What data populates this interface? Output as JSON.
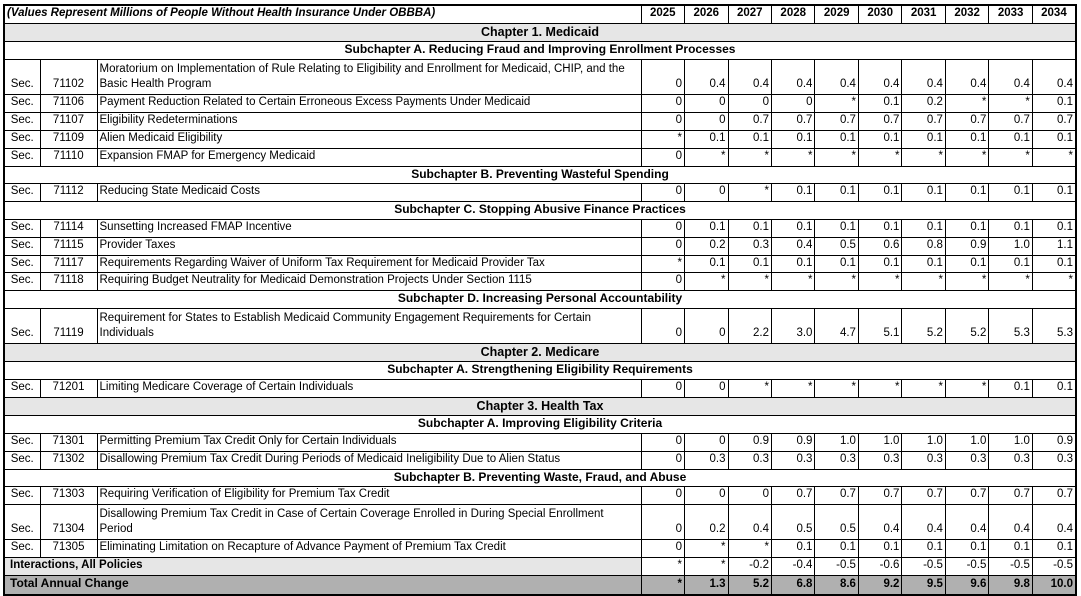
{
  "table": {
    "title": "(Values Represent Millions of People Without Health Insurance Under OBBBA)",
    "years": [
      "2025",
      "2026",
      "2027",
      "2028",
      "2029",
      "2030",
      "2031",
      "2032",
      "2033",
      "2034"
    ],
    "colors": {
      "band_light": "#e6e6e6",
      "band_dark": "#b0b0b0",
      "border": "#000000",
      "text": "#000000"
    },
    "rows": [
      {
        "type": "chapter",
        "label": "Chapter 1. Medicaid"
      },
      {
        "type": "subchapter",
        "label": "Subchapter A. Reducing Fraud and Improving Enrollment Processes"
      },
      {
        "type": "section",
        "sec": "Sec.",
        "number": "71102",
        "description": "Moratorium on Implementation of Rule Relating to Eligibility and Enrollment for Medicaid, CHIP, and the Basic Health Program",
        "twoLine": true,
        "values": [
          "0",
          "0.4",
          "0.4",
          "0.4",
          "0.4",
          "0.4",
          "0.4",
          "0.4",
          "0.4",
          "0.4"
        ]
      },
      {
        "type": "section",
        "sec": "Sec.",
        "number": "71106",
        "description": "Payment Reduction Related to Certain Erroneous Excess Payments Under Medicaid",
        "values": [
          "0",
          "0",
          "0",
          "0",
          "*",
          "0.1",
          "0.2",
          "*",
          "*",
          "0.1"
        ]
      },
      {
        "type": "section",
        "sec": "Sec.",
        "number": "71107",
        "description": "Eligibility Redeterminations",
        "values": [
          "0",
          "0",
          "0.7",
          "0.7",
          "0.7",
          "0.7",
          "0.7",
          "0.7",
          "0.7",
          "0.7"
        ]
      },
      {
        "type": "section",
        "sec": "Sec.",
        "number": "71109",
        "description": "Alien Medicaid Eligibility",
        "values": [
          "*",
          "0.1",
          "0.1",
          "0.1",
          "0.1",
          "0.1",
          "0.1",
          "0.1",
          "0.1",
          "0.1"
        ]
      },
      {
        "type": "section",
        "sec": "Sec.",
        "number": "71110",
        "description": "Expansion FMAP for Emergency Medicaid",
        "values": [
          "0",
          "*",
          "*",
          "*",
          "*",
          "*",
          "*",
          "*",
          "*",
          "*"
        ]
      },
      {
        "type": "subchapter",
        "label": "Subchapter B. Preventing Wasteful Spending"
      },
      {
        "type": "section",
        "sec": "Sec.",
        "number": "71112",
        "description": "Reducing State Medicaid Costs",
        "values": [
          "0",
          "0",
          "*",
          "0.1",
          "0.1",
          "0.1",
          "0.1",
          "0.1",
          "0.1",
          "0.1"
        ]
      },
      {
        "type": "subchapter",
        "label": "Subchapter C. Stopping Abusive Finance Practices"
      },
      {
        "type": "section",
        "sec": "Sec.",
        "number": "71114",
        "description": "Sunsetting Increased FMAP Incentive",
        "values": [
          "0",
          "0.1",
          "0.1",
          "0.1",
          "0.1",
          "0.1",
          "0.1",
          "0.1",
          "0.1",
          "0.1"
        ]
      },
      {
        "type": "section",
        "sec": "Sec.",
        "number": "71115",
        "description": "Provider Taxes",
        "values": [
          "0",
          "0.2",
          "0.3",
          "0.4",
          "0.5",
          "0.6",
          "0.8",
          "0.9",
          "1.0",
          "1.1"
        ]
      },
      {
        "type": "section",
        "sec": "Sec.",
        "number": "71117",
        "description": "Requirements Regarding Waiver of Uniform Tax Requirement for Medicaid Provider Tax",
        "values": [
          "*",
          "0.1",
          "0.1",
          "0.1",
          "0.1",
          "0.1",
          "0.1",
          "0.1",
          "0.1",
          "0.1"
        ]
      },
      {
        "type": "section",
        "sec": "Sec.",
        "number": "71118",
        "description": "Requiring Budget Neutrality for Medicaid Demonstration Projects Under Section 1115",
        "values": [
          "0",
          "*",
          "*",
          "*",
          "*",
          "*",
          "*",
          "*",
          "*",
          "*"
        ]
      },
      {
        "type": "subchapter",
        "label": "Subchapter D. Increasing Personal Accountability"
      },
      {
        "type": "section",
        "sec": "Sec.",
        "number": "71119",
        "description": "Requirement for States to Establish Medicaid Community Engagement Requirements for Certain Individuals",
        "twoLine": true,
        "values": [
          "0",
          "0",
          "2.2",
          "3.0",
          "4.7",
          "5.1",
          "5.2",
          "5.2",
          "5.3",
          "5.3"
        ]
      },
      {
        "type": "chapter",
        "label": "Chapter 2. Medicare"
      },
      {
        "type": "subchapter",
        "label": "Subchapter A. Strengthening Eligibility Requirements"
      },
      {
        "type": "section",
        "sec": "Sec.",
        "number": "71201",
        "description": "Limiting Medicare Coverage of Certain Individuals",
        "values": [
          "0",
          "0",
          "*",
          "*",
          "*",
          "*",
          "*",
          "*",
          "0.1",
          "0.1"
        ]
      },
      {
        "type": "chapter",
        "label": "Chapter 3. Health Tax"
      },
      {
        "type": "subchapter",
        "label": "Subchapter A. Improving Eligibility Criteria"
      },
      {
        "type": "section",
        "sec": "Sec.",
        "number": "71301",
        "description": "Permitting Premium Tax Credit Only for Certain Individuals",
        "values": [
          "0",
          "0",
          "0.9",
          "0.9",
          "1.0",
          "1.0",
          "1.0",
          "1.0",
          "1.0",
          "0.9"
        ]
      },
      {
        "type": "section",
        "sec": "Sec.",
        "number": "71302",
        "description": "Disallowing Premium Tax Credit During Periods of Medicaid Ineligibility Due to Alien Status",
        "values": [
          "0",
          "0.3",
          "0.3",
          "0.3",
          "0.3",
          "0.3",
          "0.3",
          "0.3",
          "0.3",
          "0.3"
        ]
      },
      {
        "type": "subchapter",
        "label": "Subchapter B. Preventing Waste, Fraud, and Abuse"
      },
      {
        "type": "section",
        "sec": "Sec.",
        "number": "71303",
        "description": "Requiring Verification of Eligibility for Premium Tax Credit",
        "values": [
          "0",
          "0",
          "0",
          "0.7",
          "0.7",
          "0.7",
          "0.7",
          "0.7",
          "0.7",
          "0.7"
        ]
      },
      {
        "type": "section",
        "sec": "Sec.",
        "number": "71304",
        "description": "Disallowing Premium Tax Credit in Case of Certain Coverage Enrolled in During Special Enrollment Period",
        "twoLine": true,
        "values": [
          "0",
          "0.2",
          "0.4",
          "0.5",
          "0.5",
          "0.4",
          "0.4",
          "0.4",
          "0.4",
          "0.4"
        ]
      },
      {
        "type": "section",
        "sec": "Sec.",
        "number": "71305",
        "description": "Eliminating Limitation on Recapture of Advance Payment of Premium Tax Credit",
        "values": [
          "0",
          "*",
          "*",
          "0.1",
          "0.1",
          "0.1",
          "0.1",
          "0.1",
          "0.1",
          "0.1"
        ]
      },
      {
        "type": "interactions",
        "label": "Interactions, All Policies",
        "values": [
          "*",
          "*",
          "-0.2",
          "-0.4",
          "-0.5",
          "-0.6",
          "-0.5",
          "-0.5",
          "-0.5",
          "-0.5"
        ]
      },
      {
        "type": "total",
        "label": "Total Annual Change",
        "values": [
          "*",
          "1.3",
          "5.2",
          "6.8",
          "8.6",
          "9.2",
          "9.5",
          "9.6",
          "9.8",
          "10.0"
        ]
      }
    ]
  }
}
